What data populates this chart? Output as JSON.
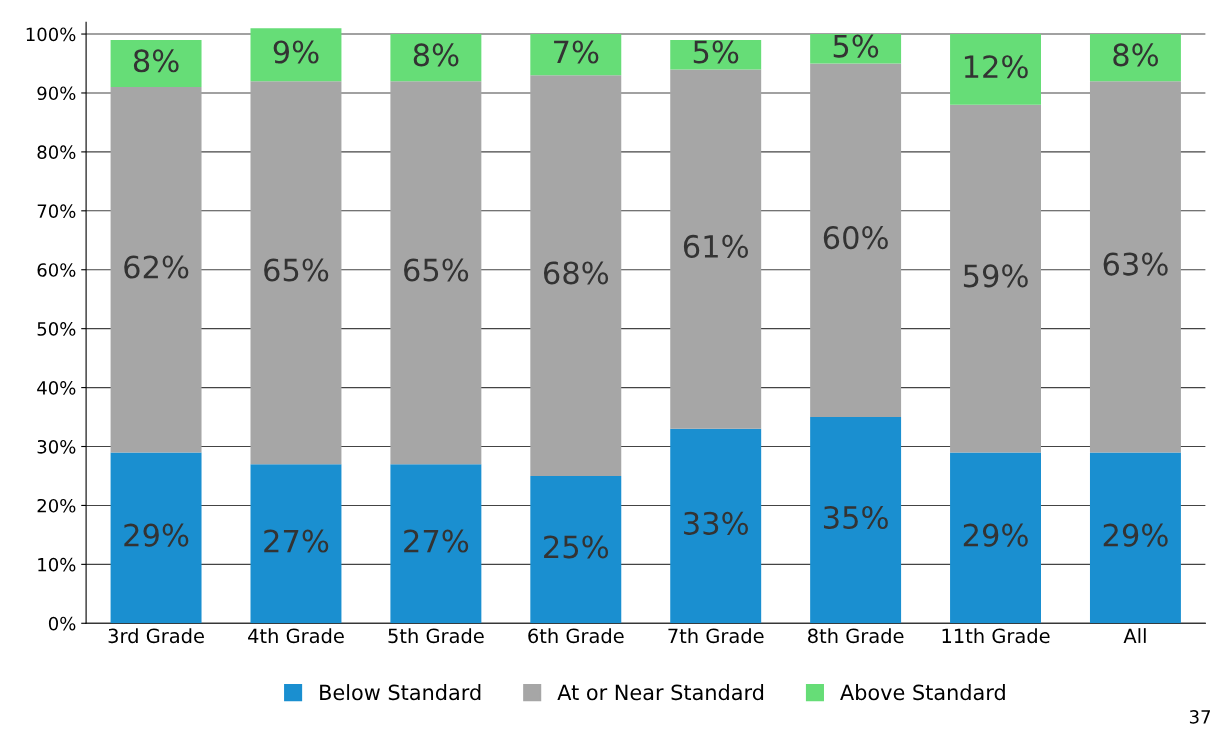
{
  "chart_data": {
    "type": "bar",
    "stacked": true,
    "categories": [
      "3rd Grade",
      "4th Grade",
      "5th Grade",
      "6th Grade",
      "7th Grade",
      "8th Grade",
      "11th Grade",
      "All"
    ],
    "series": [
      {
        "name": "Below Standard",
        "color": "#1a8fd0",
        "values": [
          29,
          27,
          27,
          25,
          33,
          35,
          29,
          29
        ],
        "value_labels": [
          "29%",
          "27%",
          "27%",
          "25%",
          "33%",
          "35%",
          "29%",
          "29%"
        ]
      },
      {
        "name": "At or Near Standard",
        "color": "#a6a6a6",
        "values": [
          62,
          65,
          65,
          68,
          61,
          60,
          59,
          63
        ],
        "value_labels": [
          "62%",
          "65%",
          "65%",
          "68%",
          "61%",
          "60%",
          "59%",
          "63%"
        ]
      },
      {
        "name": "Above Standard",
        "color": "#66dd77",
        "values": [
          8,
          9,
          8,
          7,
          5,
          5,
          12,
          8
        ],
        "value_labels": [
          "8%",
          "9%",
          "8%",
          "7%",
          "5%",
          "5%",
          "12%",
          "8%"
        ]
      }
    ],
    "ylim": [
      0,
      102
    ],
    "yticks": [
      {
        "value": 0,
        "label": "0%"
      },
      {
        "value": 10,
        "label": "10%"
      },
      {
        "value": 20,
        "label": "20%"
      },
      {
        "value": 30,
        "label": "30%"
      },
      {
        "value": 40,
        "label": "40%"
      },
      {
        "value": 50,
        "label": "50%"
      },
      {
        "value": 60,
        "label": "60%"
      },
      {
        "value": 70,
        "label": "70%"
      },
      {
        "value": 80,
        "label": "80%"
      },
      {
        "value": 90,
        "label": "90%"
      },
      {
        "value": 100,
        "label": "100%"
      }
    ],
    "grid": "y",
    "legend": "bottom",
    "annotations": [
      "37"
    ]
  }
}
